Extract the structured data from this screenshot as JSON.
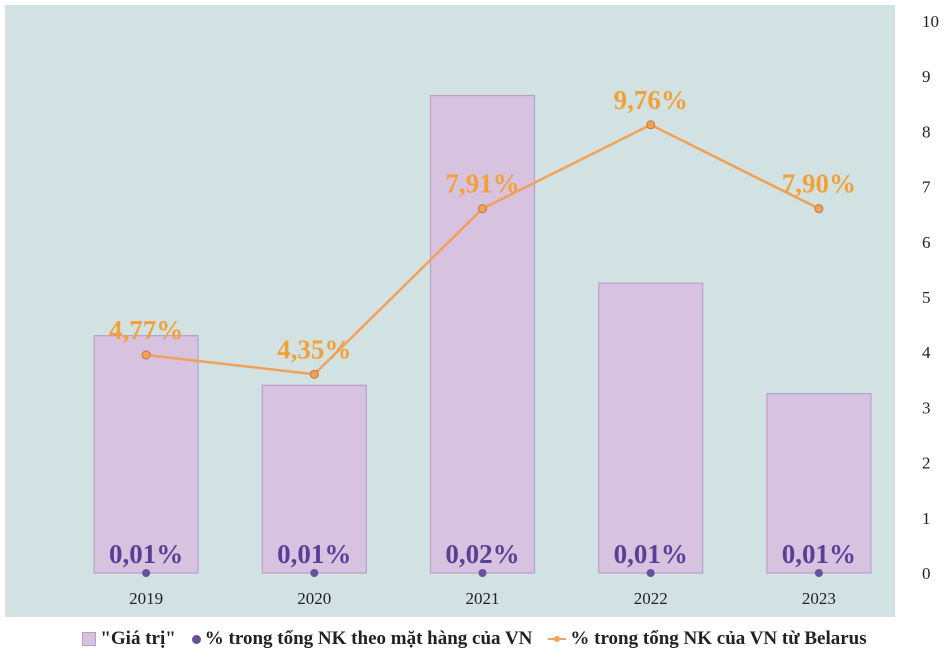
{
  "chart_data": {
    "type": "bar",
    "categories": [
      "2019",
      "2020",
      "2021",
      "2022",
      "2023"
    ],
    "y_ticks": [
      "0",
      "1",
      "2",
      "3",
      "4",
      "5",
      "6",
      "7",
      "8",
      "9",
      "10"
    ],
    "ylim": [
      0,
      10
    ],
    "y_axis_side": "right",
    "grid": false,
    "legend_position": "bottom",
    "series": [
      {
        "name": "\"Giá trị\"",
        "type": "bar",
        "color": "#d7c2e0",
        "values": [
          4.3,
          3.4,
          8.65,
          5.25,
          3.25
        ]
      },
      {
        "name": "% trong tổng NK theo mặt hàng của VN",
        "type": "scatter",
        "color": "#6a4f9c",
        "values": [
          0,
          0,
          0,
          0,
          0
        ],
        "labels": [
          "0,01%",
          "0,01%",
          "0,02%",
          "0,01%",
          "0,01%"
        ]
      },
      {
        "name": "% trong tổng NK của VN từ Belarus",
        "type": "line",
        "color": "#f2a15a",
        "values": [
          3.95,
          3.6,
          6.6,
          8.12,
          6.6
        ],
        "labels": [
          "4,77%",
          "4,35%",
          "7,91%",
          "9,76%",
          "7,90%"
        ]
      }
    ]
  },
  "colors": {
    "plot_background": "#d2e2e2",
    "bar_fill": "#d7c2e0",
    "bar_stroke": "#b9a0c9",
    "bar_label": "#5b3f96",
    "line": "#f2a15a",
    "line_label": "#f2a13a",
    "dot": "#6a4f9c",
    "axis_text": "#222222"
  },
  "legend": {
    "bars_label": "\"Giá trị\"",
    "dots_label": "% trong tổng NK theo mặt hàng của VN",
    "line_label": "% trong tổng NK của VN từ Belarus"
  }
}
